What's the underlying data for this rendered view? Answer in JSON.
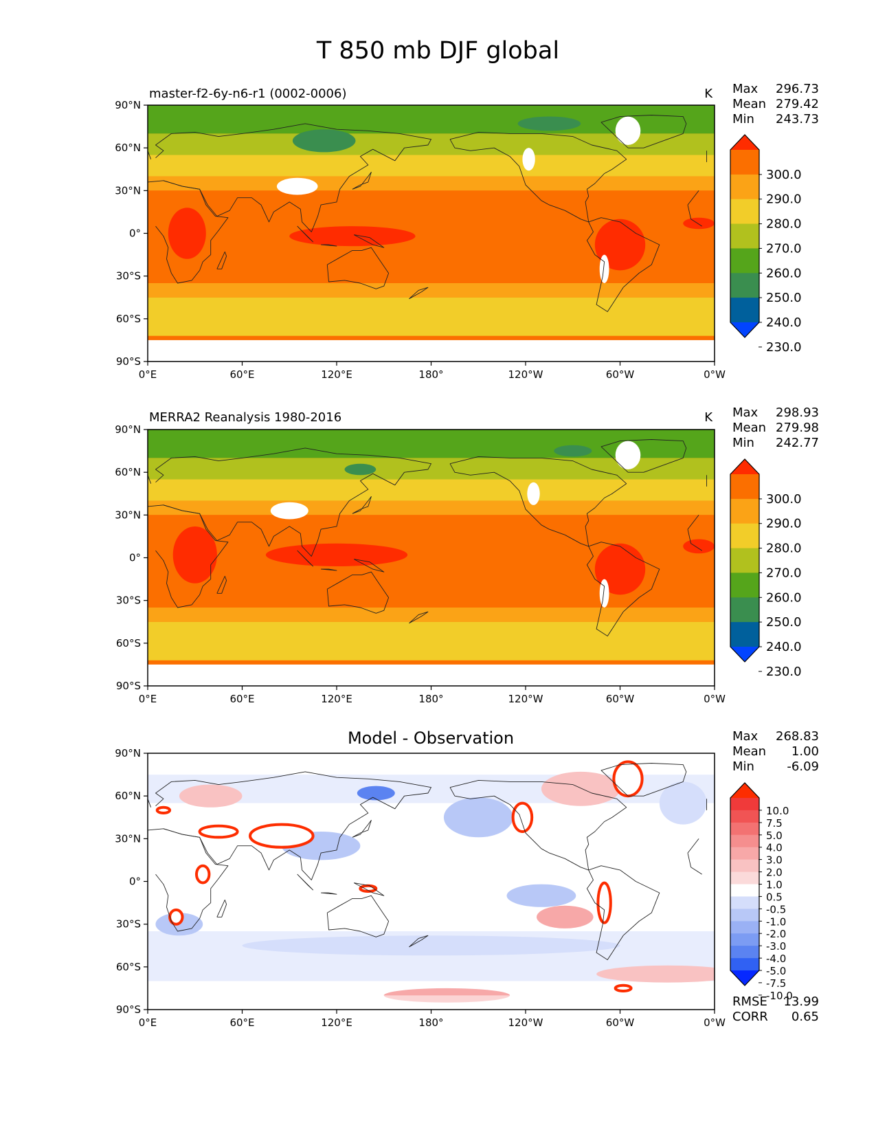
{
  "figure_title": "T 850 mb DJF global",
  "colors": {
    "temperature_scale": [
      "#0244ff",
      "#00609c",
      "#3a8e4f",
      "#55a51b",
      "#b1c11e",
      "#f2cd29",
      "#fba316",
      "#fb6f00",
      "#ff2c00"
    ],
    "difference_scale": [
      "#0628ff",
      "#3061f3",
      "#5b83f1",
      "#7c9cf3",
      "#9ab1f5",
      "#b8c8f7",
      "#d5defb",
      "#ffffff",
      "#fbdada",
      "#f9c2c2",
      "#f7a8a8",
      "#f58e8e",
      "#f37272",
      "#f15454",
      "#f03a3a",
      "#fd2d00"
    ],
    "land_white": "#ffffff",
    "coast": "#222222"
  },
  "chart_data": [
    {
      "type": "heatmap",
      "subtitle": "master-f2-6y-n6-r1 (0002-0006)",
      "units": "K",
      "stats": {
        "max_label": "Max",
        "max": "296.73",
        "mean_label": "Mean",
        "mean": "279.42",
        "min_label": "Min",
        "min": "243.73"
      },
      "x_ticks": [
        "0°E",
        "60°E",
        "120°E",
        "180°",
        "120°W",
        "60°W",
        "0°W"
      ],
      "y_ticks": [
        "90°N",
        "60°N",
        "30°N",
        "0°",
        "30°S",
        "60°S",
        "90°S"
      ],
      "xlim": [
        0,
        360
      ],
      "ylim": [
        -90,
        90
      ],
      "colorbar_levels": [
        "300.0",
        "290.0",
        "280.0",
        "270.0",
        "260.0",
        "250.0",
        "240.0",
        "230.0"
      ],
      "bands": [
        {
          "lat": [
            70,
            90
          ],
          "level": 3
        },
        {
          "lat": [
            55,
            70
          ],
          "level": 4
        },
        {
          "lat": [
            40,
            55
          ],
          "level": 5
        },
        {
          "lat": [
            30,
            40
          ],
          "level": 6
        },
        {
          "lat": [
            -35,
            30
          ],
          "level": 7
        },
        {
          "lat": [
            -45,
            -35
          ],
          "level": 6
        },
        {
          "lat": [
            -72,
            -45
          ],
          "level": 5
        }
      ],
      "blobs": [
        {
          "lon": 112,
          "lat": 65,
          "rx": 20,
          "ry": 8,
          "level": 2
        },
        {
          "lon": 255,
          "lat": 77,
          "rx": 20,
          "ry": 5,
          "level": 2
        },
        {
          "lon": 25,
          "lat": 0,
          "rx": 12,
          "ry": 18,
          "level": 8
        },
        {
          "lon": 130,
          "lat": -2,
          "rx": 40,
          "ry": 7,
          "level": 8
        },
        {
          "lon": 300,
          "lat": -8,
          "rx": 16,
          "ry": 18,
          "level": 8
        },
        {
          "lon": 350,
          "lat": 7,
          "rx": 10,
          "ry": 4,
          "level": 8
        }
      ],
      "white_masks": [
        {
          "lon": 95,
          "lat": 33,
          "rx": 13,
          "ry": 6
        },
        {
          "lon": 305,
          "lat": 72,
          "rx": 8,
          "ry": 10
        },
        {
          "lon": 242,
          "lat": 52,
          "rx": 4,
          "ry": 8
        },
        {
          "lon": 290,
          "lat": -25,
          "rx": 3,
          "ry": 10
        }
      ],
      "antarctica_lat": -75
    },
    {
      "type": "heatmap",
      "subtitle": "MERRA2 Reanalysis 1980-2016",
      "units": "K",
      "stats": {
        "max_label": "Max",
        "max": "298.93",
        "mean_label": "Mean",
        "mean": "279.98",
        "min_label": "Min",
        "min": "242.77"
      },
      "x_ticks": [
        "0°E",
        "60°E",
        "120°E",
        "180°",
        "120°W",
        "60°W",
        "0°W"
      ],
      "y_ticks": [
        "90°N",
        "60°N",
        "30°N",
        "0°",
        "30°S",
        "60°S",
        "90°S"
      ],
      "xlim": [
        0,
        360
      ],
      "ylim": [
        -90,
        90
      ],
      "colorbar_levels": [
        "300.0",
        "290.0",
        "280.0",
        "270.0",
        "260.0",
        "250.0",
        "240.0",
        "230.0"
      ],
      "bands": [
        {
          "lat": [
            70,
            90
          ],
          "level": 3
        },
        {
          "lat": [
            55,
            70
          ],
          "level": 4
        },
        {
          "lat": [
            40,
            55
          ],
          "level": 5
        },
        {
          "lat": [
            30,
            40
          ],
          "level": 6
        },
        {
          "lat": [
            -35,
            30
          ],
          "level": 7
        },
        {
          "lat": [
            -45,
            -35
          ],
          "level": 6
        },
        {
          "lat": [
            -72,
            -45
          ],
          "level": 5
        }
      ],
      "blobs": [
        {
          "lon": 135,
          "lat": 62,
          "rx": 10,
          "ry": 4,
          "level": 2
        },
        {
          "lon": 270,
          "lat": 75,
          "rx": 12,
          "ry": 4,
          "level": 2
        },
        {
          "lon": 30,
          "lat": 2,
          "rx": 14,
          "ry": 20,
          "level": 8
        },
        {
          "lon": 120,
          "lat": 2,
          "rx": 45,
          "ry": 8,
          "level": 8
        },
        {
          "lon": 300,
          "lat": -8,
          "rx": 16,
          "ry": 18,
          "level": 8
        },
        {
          "lon": 350,
          "lat": 8,
          "rx": 10,
          "ry": 5,
          "level": 8
        }
      ],
      "white_masks": [
        {
          "lon": 90,
          "lat": 33,
          "rx": 12,
          "ry": 6
        },
        {
          "lon": 305,
          "lat": 72,
          "rx": 8,
          "ry": 10
        },
        {
          "lon": 245,
          "lat": 45,
          "rx": 4,
          "ry": 8
        },
        {
          "lon": 290,
          "lat": -25,
          "rx": 3,
          "ry": 10
        }
      ],
      "antarctica_lat": -75
    },
    {
      "type": "heatmap",
      "title": "Model - Observation",
      "stats": {
        "max_label": "Max",
        "max": "268.83",
        "mean_label": "Mean",
        "mean": "1.00",
        "min_label": "Min",
        "min": "-6.09"
      },
      "metrics": {
        "rmse_label": "RMSE",
        "rmse": "13.99",
        "corr_label": "CORR",
        "corr": "0.65"
      },
      "x_ticks": [
        "0°E",
        "60°E",
        "120°E",
        "180°",
        "120°W",
        "60°W",
        "0°W"
      ],
      "y_ticks": [
        "90°N",
        "60°N",
        "30°N",
        "0°",
        "30°S",
        "60°S",
        "90°S"
      ],
      "xlim": [
        0,
        360
      ],
      "ylim": [
        -90,
        90
      ],
      "colorbar_levels": [
        "10.0",
        "7.5",
        "5.0",
        "4.0",
        "3.0",
        "2.0",
        "1.0",
        "0.5",
        "-0.5",
        "-1.0",
        "-2.0",
        "-3.0",
        "-4.0",
        "-5.0",
        "-7.5",
        "-10.0"
      ],
      "background_level": 7,
      "blobs": [
        {
          "lon": 145,
          "lat": 62,
          "rx": 12,
          "ry": 5,
          "level": 2
        },
        {
          "lon": 210,
          "lat": 45,
          "rx": 22,
          "ry": 14,
          "level": 5
        },
        {
          "lon": 180,
          "lat": -45,
          "rx": 120,
          "ry": 7,
          "level": 6
        },
        {
          "lon": 110,
          "lat": 25,
          "rx": 25,
          "ry": 10,
          "level": 5
        },
        {
          "lon": 20,
          "lat": -30,
          "rx": 15,
          "ry": 8,
          "level": 5
        },
        {
          "lon": 250,
          "lat": -10,
          "rx": 22,
          "ry": 8,
          "level": 5
        },
        {
          "lon": 340,
          "lat": 55,
          "rx": 15,
          "ry": 15,
          "level": 6
        },
        {
          "lon": 40,
          "lat": 60,
          "rx": 20,
          "ry": 8,
          "level": 9
        },
        {
          "lon": 275,
          "lat": 65,
          "rx": 25,
          "ry": 12,
          "level": 9
        },
        {
          "lon": 265,
          "lat": -25,
          "rx": 18,
          "ry": 8,
          "level": 10
        },
        {
          "lon": 330,
          "lat": -65,
          "rx": 45,
          "ry": 6,
          "level": 9
        },
        {
          "lon": 190,
          "lat": -80,
          "rx": 40,
          "ry": 5,
          "level": 10
        }
      ],
      "red_edges": [
        {
          "lon": 85,
          "lat": 32,
          "rx": 20,
          "ry": 8
        },
        {
          "lon": 45,
          "lat": 35,
          "rx": 12,
          "ry": 4
        },
        {
          "lon": 35,
          "lat": 5,
          "rx": 4,
          "ry": 6
        },
        {
          "lon": 18,
          "lat": -25,
          "rx": 4,
          "ry": 5
        },
        {
          "lon": 238,
          "lat": 45,
          "rx": 6,
          "ry": 10
        },
        {
          "lon": 290,
          "lat": -15,
          "rx": 4,
          "ry": 14
        },
        {
          "lon": 140,
          "lat": -5,
          "rx": 5,
          "ry": 2
        },
        {
          "lon": 305,
          "lat": 72,
          "rx": 9,
          "ry": 12
        },
        {
          "lon": 302,
          "lat": -75,
          "rx": 5,
          "ry": 2
        },
        {
          "lon": 10,
          "lat": 50,
          "rx": 4,
          "ry": 2
        }
      ]
    }
  ]
}
